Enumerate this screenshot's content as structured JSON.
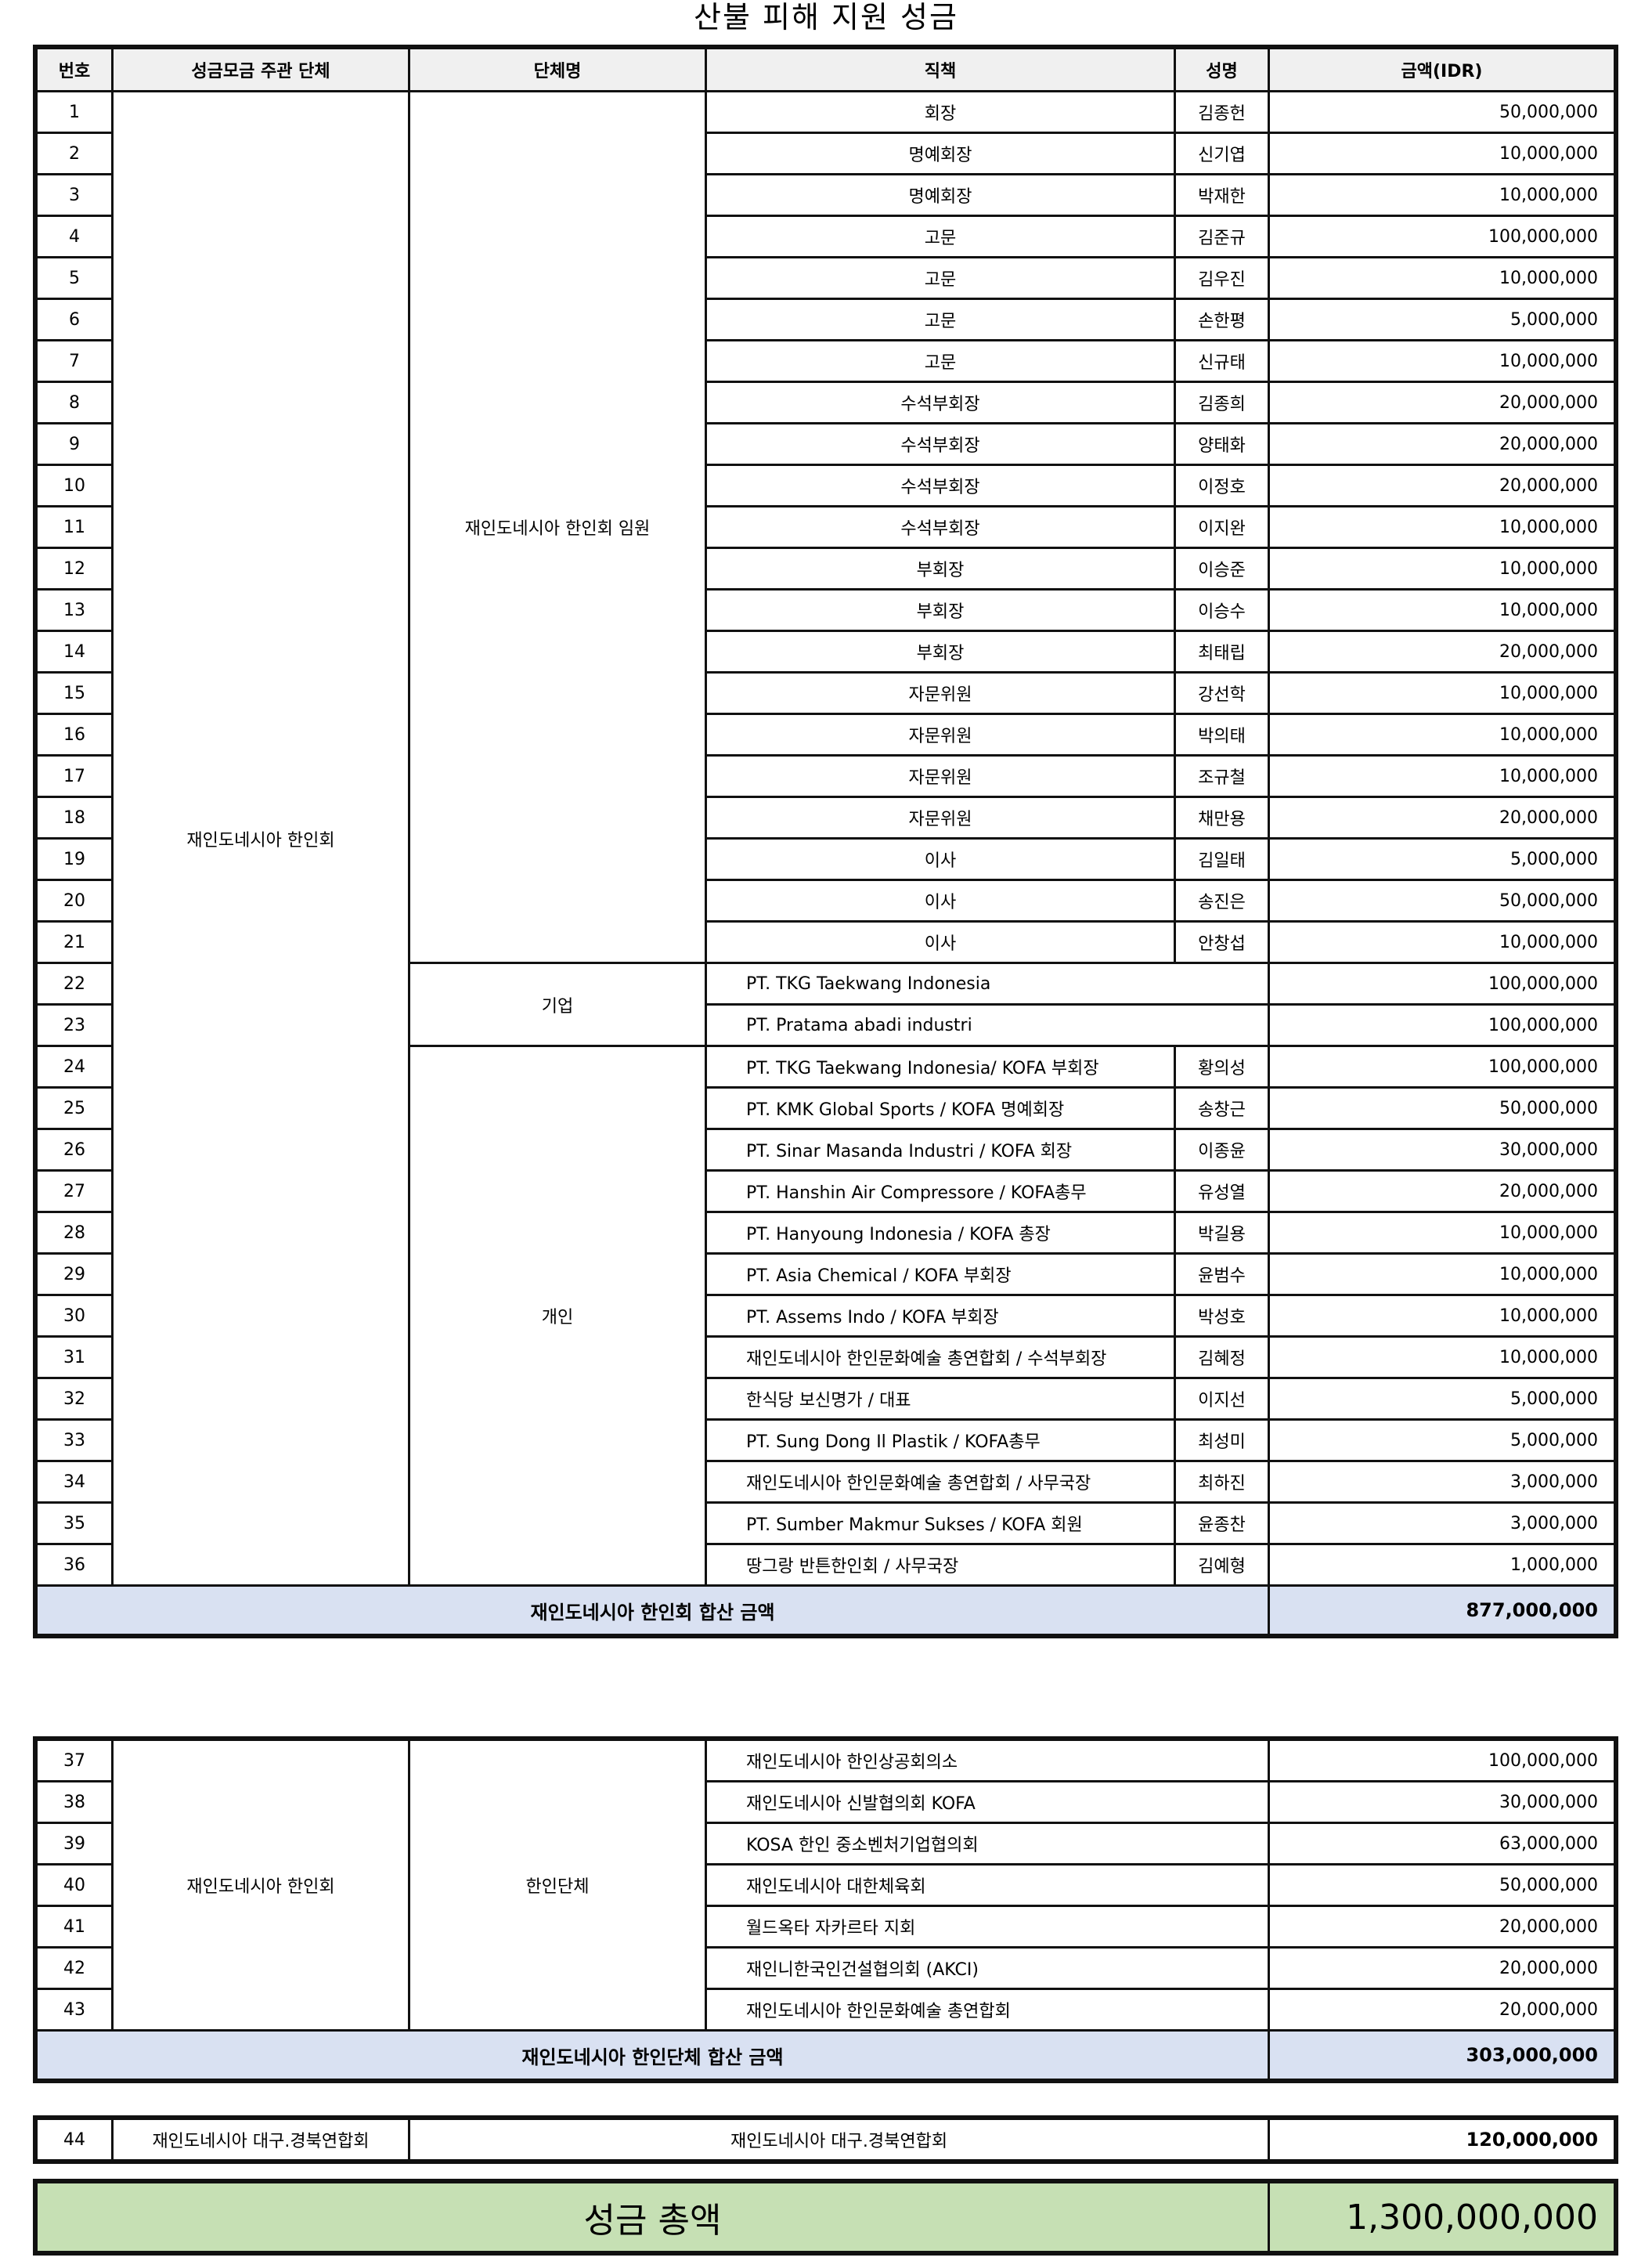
{
  "title": "산불 피해 지원 성금",
  "headers": [
    "번호",
    "성금모금 주관 단체",
    "단체명",
    "직책",
    "성명",
    "금액(IDR)"
  ],
  "section1": {
    "organizer": "재인도네시아 한인회",
    "groups": [
      {
        "name": "재인도네시아 한인회 임원",
        "style": "center",
        "rows": [
          {
            "no": "1",
            "position": "회장",
            "name": "김종헌",
            "amount": "50,000,000"
          },
          {
            "no": "2",
            "position": "명예회장",
            "name": "신기엽",
            "amount": "10,000,000"
          },
          {
            "no": "3",
            "position": "명예회장",
            "name": "박재한",
            "amount": "10,000,000"
          },
          {
            "no": "4",
            "position": "고문",
            "name": "김준규",
            "amount": "100,000,000"
          },
          {
            "no": "5",
            "position": "고문",
            "name": "김우진",
            "amount": "10,000,000"
          },
          {
            "no": "6",
            "position": "고문",
            "name": "손한평",
            "amount": "5,000,000"
          },
          {
            "no": "7",
            "position": "고문",
            "name": "신규태",
            "amount": "10,000,000"
          },
          {
            "no": "8",
            "position": "수석부회장",
            "name": "김종희",
            "amount": "20,000,000"
          },
          {
            "no": "9",
            "position": "수석부회장",
            "name": "양태화",
            "amount": "20,000,000"
          },
          {
            "no": "10",
            "position": "수석부회장",
            "name": "이정호",
            "amount": "20,000,000"
          },
          {
            "no": "11",
            "position": "수석부회장",
            "name": "이지완",
            "amount": "10,000,000"
          },
          {
            "no": "12",
            "position": "부회장",
            "name": "이승준",
            "amount": "10,000,000"
          },
          {
            "no": "13",
            "position": "부회장",
            "name": "이승수",
            "amount": "10,000,000"
          },
          {
            "no": "14",
            "position": "부회장",
            "name": "최태립",
            "amount": "20,000,000"
          },
          {
            "no": "15",
            "position": "자문위원",
            "name": "강선학",
            "amount": "10,000,000"
          },
          {
            "no": "16",
            "position": "자문위원",
            "name": "박의태",
            "amount": "10,000,000"
          },
          {
            "no": "17",
            "position": "자문위원",
            "name": "조규철",
            "amount": "10,000,000"
          },
          {
            "no": "18",
            "position": "자문위원",
            "name": "채만용",
            "amount": "20,000,000"
          },
          {
            "no": "19",
            "position": "이사",
            "name": "김일태",
            "amount": "5,000,000"
          },
          {
            "no": "20",
            "position": "이사",
            "name": "송진은",
            "amount": "50,000,000"
          },
          {
            "no": "21",
            "position": "이사",
            "name": "안창섭",
            "amount": "10,000,000"
          }
        ]
      },
      {
        "name": "기업",
        "style": "span",
        "rows": [
          {
            "no": "22",
            "position": "PT. TKG Taekwang Indonesia",
            "amount": "100,000,000"
          },
          {
            "no": "23",
            "position": "PT. Pratama abadi industri",
            "amount": "100,000,000"
          }
        ]
      },
      {
        "name": "개인",
        "style": "left",
        "rows": [
          {
            "no": "24",
            "position": "PT. TKG Taekwang Indonesia/ KOFA 부회장",
            "name": "황의성",
            "amount": "100,000,000"
          },
          {
            "no": "25",
            "position": "PT. KMK Global Sports / KOFA 명예회장",
            "name": "송창근",
            "amount": "50,000,000"
          },
          {
            "no": "26",
            "position": "PT. Sinar Masanda Industri / KOFA 회장",
            "name": "이종윤",
            "amount": "30,000,000"
          },
          {
            "no": "27",
            "position": "PT. Hanshin Air Compressore / KOFA총무",
            "name": "유성열",
            "amount": "20,000,000"
          },
          {
            "no": "28",
            "position": "PT. Hanyoung Indonesia / KOFA 총장",
            "name": "박길용",
            "amount": "10,000,000"
          },
          {
            "no": "29",
            "position": "PT. Asia Chemical / KOFA 부회장",
            "name": "윤범수",
            "amount": "10,000,000"
          },
          {
            "no": "30",
            "position": "PT. Assems Indo / KOFA 부회장",
            "name": "박성호",
            "amount": "10,000,000"
          },
          {
            "no": "31",
            "position": "재인도네시아 한인문화예술 총연합회 / 수석부회장",
            "name": "김혜정",
            "amount": "10,000,000"
          },
          {
            "no": "32",
            "position": "한식당 보신명가 / 대표",
            "name": "이지선",
            "amount": "5,000,000"
          },
          {
            "no": "33",
            "position": "PT. Sung Dong Il Plastik / KOFA총무",
            "name": "최성미",
            "amount": "5,000,000"
          },
          {
            "no": "34",
            "position": "재인도네시아 한인문화예술 총연합회 / 사무국장",
            "name": "최하진",
            "amount": "3,000,000"
          },
          {
            "no": "35",
            "position": "PT. Sumber Makmur Sukses / KOFA 회원",
            "name": "윤종찬",
            "amount": "3,000,000"
          },
          {
            "no": "36",
            "position": "땅그랑 반튼한인회 / 사무국장",
            "name": "김예형",
            "amount": "1,000,000"
          }
        ]
      }
    ],
    "subtotal_label": "재인도네시아 한인회 합산 금액",
    "subtotal": "877,000,000"
  },
  "section2": {
    "organizer": "재인도네시아 한인회",
    "groups": [
      {
        "name": "한인단체",
        "style": "span",
        "rows": [
          {
            "no": "37",
            "position": "재인도네시아 한인상공회의소",
            "amount": "100,000,000"
          },
          {
            "no": "38",
            "position": "재인도네시아 신발협의회 KOFA",
            "amount": "30,000,000"
          },
          {
            "no": "39",
            "position": "KOSA 한인 중소벤처기업협의회",
            "amount": "63,000,000"
          },
          {
            "no": "40",
            "position": "재인도네시아 대한체육회",
            "amount": "50,000,000"
          },
          {
            "no": "41",
            "position": "월드옥타 자카르타 지회",
            "amount": "20,000,000"
          },
          {
            "no": "42",
            "position": "재인니한국인건설협의회 (AKCI)",
            "amount": "20,000,000"
          },
          {
            "no": "43",
            "position": "재인도네시아 한인문화예술 총연합회",
            "amount": "20,000,000"
          }
        ]
      }
    ],
    "subtotal_label": "재인도네시아 한인단체 합산 금액",
    "subtotal": "303,000,000"
  },
  "section3": {
    "no": "44",
    "organizer": "재인도네시아 대구.경북연합회",
    "name": "재인도네시아 대구.경북연합회",
    "amount": "120,000,000"
  },
  "total": {
    "label": "성금 총액",
    "amount": "1,300,000,000"
  },
  "colors": {
    "header_bg": "#f0f0f0",
    "subtotal_bg": "#d9e1f2",
    "total_bg": "#c6e0b4"
  }
}
